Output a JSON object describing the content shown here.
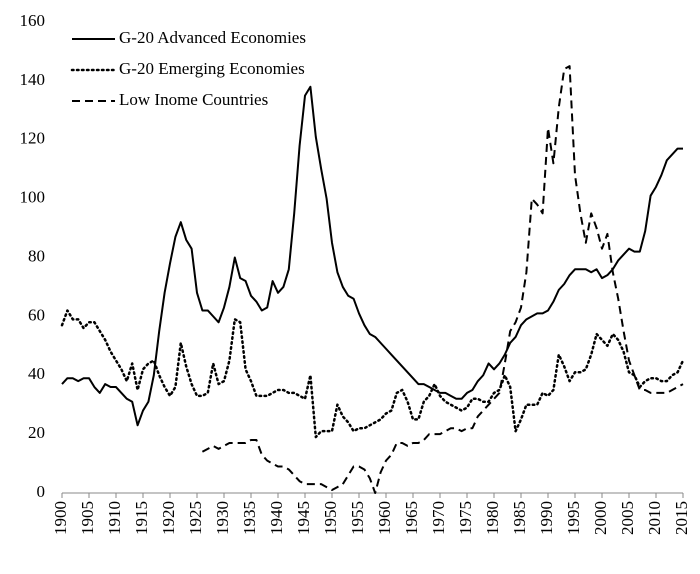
{
  "chart_data": {
    "type": "line",
    "x": [
      1900,
      1901,
      1902,
      1903,
      1904,
      1905,
      1906,
      1907,
      1908,
      1909,
      1910,
      1911,
      1912,
      1913,
      1914,
      1915,
      1916,
      1917,
      1918,
      1919,
      1920,
      1921,
      1922,
      1923,
      1924,
      1925,
      1926,
      1927,
      1928,
      1929,
      1930,
      1931,
      1932,
      1933,
      1934,
      1935,
      1936,
      1937,
      1938,
      1939,
      1940,
      1941,
      1942,
      1943,
      1944,
      1945,
      1946,
      1947,
      1948,
      1949,
      1950,
      1951,
      1952,
      1953,
      1954,
      1955,
      1956,
      1957,
      1958,
      1959,
      1960,
      1961,
      1962,
      1963,
      1964,
      1965,
      1966,
      1967,
      1968,
      1969,
      1970,
      1971,
      1972,
      1973,
      1974,
      1975,
      1976,
      1977,
      1978,
      1979,
      1980,
      1981,
      1982,
      1983,
      1984,
      1985,
      1986,
      1987,
      1988,
      1989,
      1990,
      1991,
      1992,
      1993,
      1994,
      1995,
      1996,
      1997,
      1998,
      1999,
      2000,
      2001,
      2002,
      2003,
      2004,
      2005,
      2006,
      2007,
      2008,
      2009,
      2010,
      2011,
      2012,
      2013,
      2014,
      2015
    ],
    "series": [
      {
        "name": "G-20 Advanced Economies",
        "color": "#000000",
        "linestyle": "solid",
        "values": [
          37,
          39,
          39,
          38,
          39,
          39,
          36,
          34,
          37,
          36,
          36,
          34,
          32,
          31,
          23,
          28,
          31,
          40,
          55,
          68,
          78,
          87,
          92,
          86,
          83,
          68,
          62,
          62,
          60,
          58,
          63,
          70,
          80,
          73,
          72,
          67,
          65,
          62,
          63,
          72,
          68,
          70,
          76,
          95,
          118,
          135,
          138,
          121,
          110,
          100,
          85,
          75,
          70,
          67,
          66,
          61,
          57,
          54,
          53,
          51,
          49,
          47,
          45,
          43,
          41,
          39,
          37,
          37,
          36,
          35,
          34,
          34,
          33,
          32,
          32,
          34,
          35,
          38,
          40,
          44,
          42,
          44,
          47,
          51,
          53,
          57,
          59,
          60,
          61,
          61,
          62,
          65,
          69,
          71,
          74,
          76,
          76,
          76,
          75,
          76,
          73,
          74,
          76,
          79,
          81,
          83,
          82,
          82,
          89,
          101,
          104,
          108,
          113,
          115,
          117,
          117
        ]
      },
      {
        "name": "G-20 Emerging Economies",
        "color": "#000000",
        "linestyle": "dotted",
        "values": [
          57,
          62,
          59,
          59,
          56,
          58,
          58,
          55,
          52,
          48,
          45,
          42,
          38,
          44,
          35,
          42,
          44,
          45,
          40,
          36,
          33,
          36,
          51,
          43,
          37,
          33,
          33,
          34,
          44,
          37,
          38,
          45,
          59,
          58,
          42,
          38,
          33,
          33,
          33,
          34,
          35,
          35,
          34,
          34,
          33,
          32,
          40,
          19,
          21,
          21,
          21,
          30,
          26,
          24,
          21,
          22,
          22,
          23,
          24,
          25,
          27,
          28,
          34,
          35,
          31,
          25,
          25,
          31,
          33,
          37,
          33,
          31,
          30,
          29,
          28,
          29,
          32,
          32,
          31,
          31,
          34,
          35,
          40,
          36,
          21,
          25,
          30,
          30,
          30,
          34,
          33,
          35,
          47,
          43,
          38,
          41,
          41,
          42,
          47,
          54,
          52,
          50,
          54,
          52,
          48,
          41,
          40,
          36,
          38,
          39,
          39,
          38,
          38,
          40,
          41,
          45
        ]
      },
      {
        "name": "Low Inome Countries",
        "color": "#000000",
        "linestyle": "dashed",
        "values": [
          null,
          null,
          null,
          null,
          null,
          null,
          null,
          null,
          null,
          null,
          null,
          null,
          null,
          null,
          null,
          null,
          null,
          null,
          null,
          null,
          null,
          null,
          null,
          null,
          null,
          null,
          14,
          15,
          16,
          15,
          16,
          17,
          17,
          17,
          17,
          18,
          18,
          13,
          11,
          10,
          9,
          9,
          8,
          6,
          4,
          3,
          3,
          3,
          3,
          2,
          1,
          2,
          3,
          6,
          9,
          9,
          8,
          5,
          0,
          7,
          11,
          13,
          17,
          17,
          16,
          17,
          17,
          18,
          20,
          20,
          20,
          21,
          22,
          22,
          21,
          22,
          22,
          26,
          28,
          30,
          32,
          34,
          44,
          55,
          58,
          63,
          75,
          100,
          98,
          95,
          124,
          112,
          131,
          144,
          145,
          108,
          95,
          85,
          95,
          90,
          83,
          88,
          75,
          66,
          55,
          45,
          40,
          35,
          35,
          34,
          34,
          34,
          34,
          35,
          36,
          37
        ]
      }
    ],
    "xlim": [
      1900,
      2015
    ],
    "xticks": [
      1900,
      1905,
      1910,
      1915,
      1920,
      1925,
      1930,
      1935,
      1940,
      1945,
      1950,
      1955,
      1960,
      1965,
      1970,
      1975,
      1980,
      1985,
      1990,
      1995,
      2000,
      2005,
      2010,
      2015
    ],
    "ylim": [
      0,
      160
    ],
    "yticks": [
      0,
      20,
      40,
      60,
      80,
      100,
      120,
      140,
      160
    ],
    "legend": "upper left",
    "grid": false
  }
}
